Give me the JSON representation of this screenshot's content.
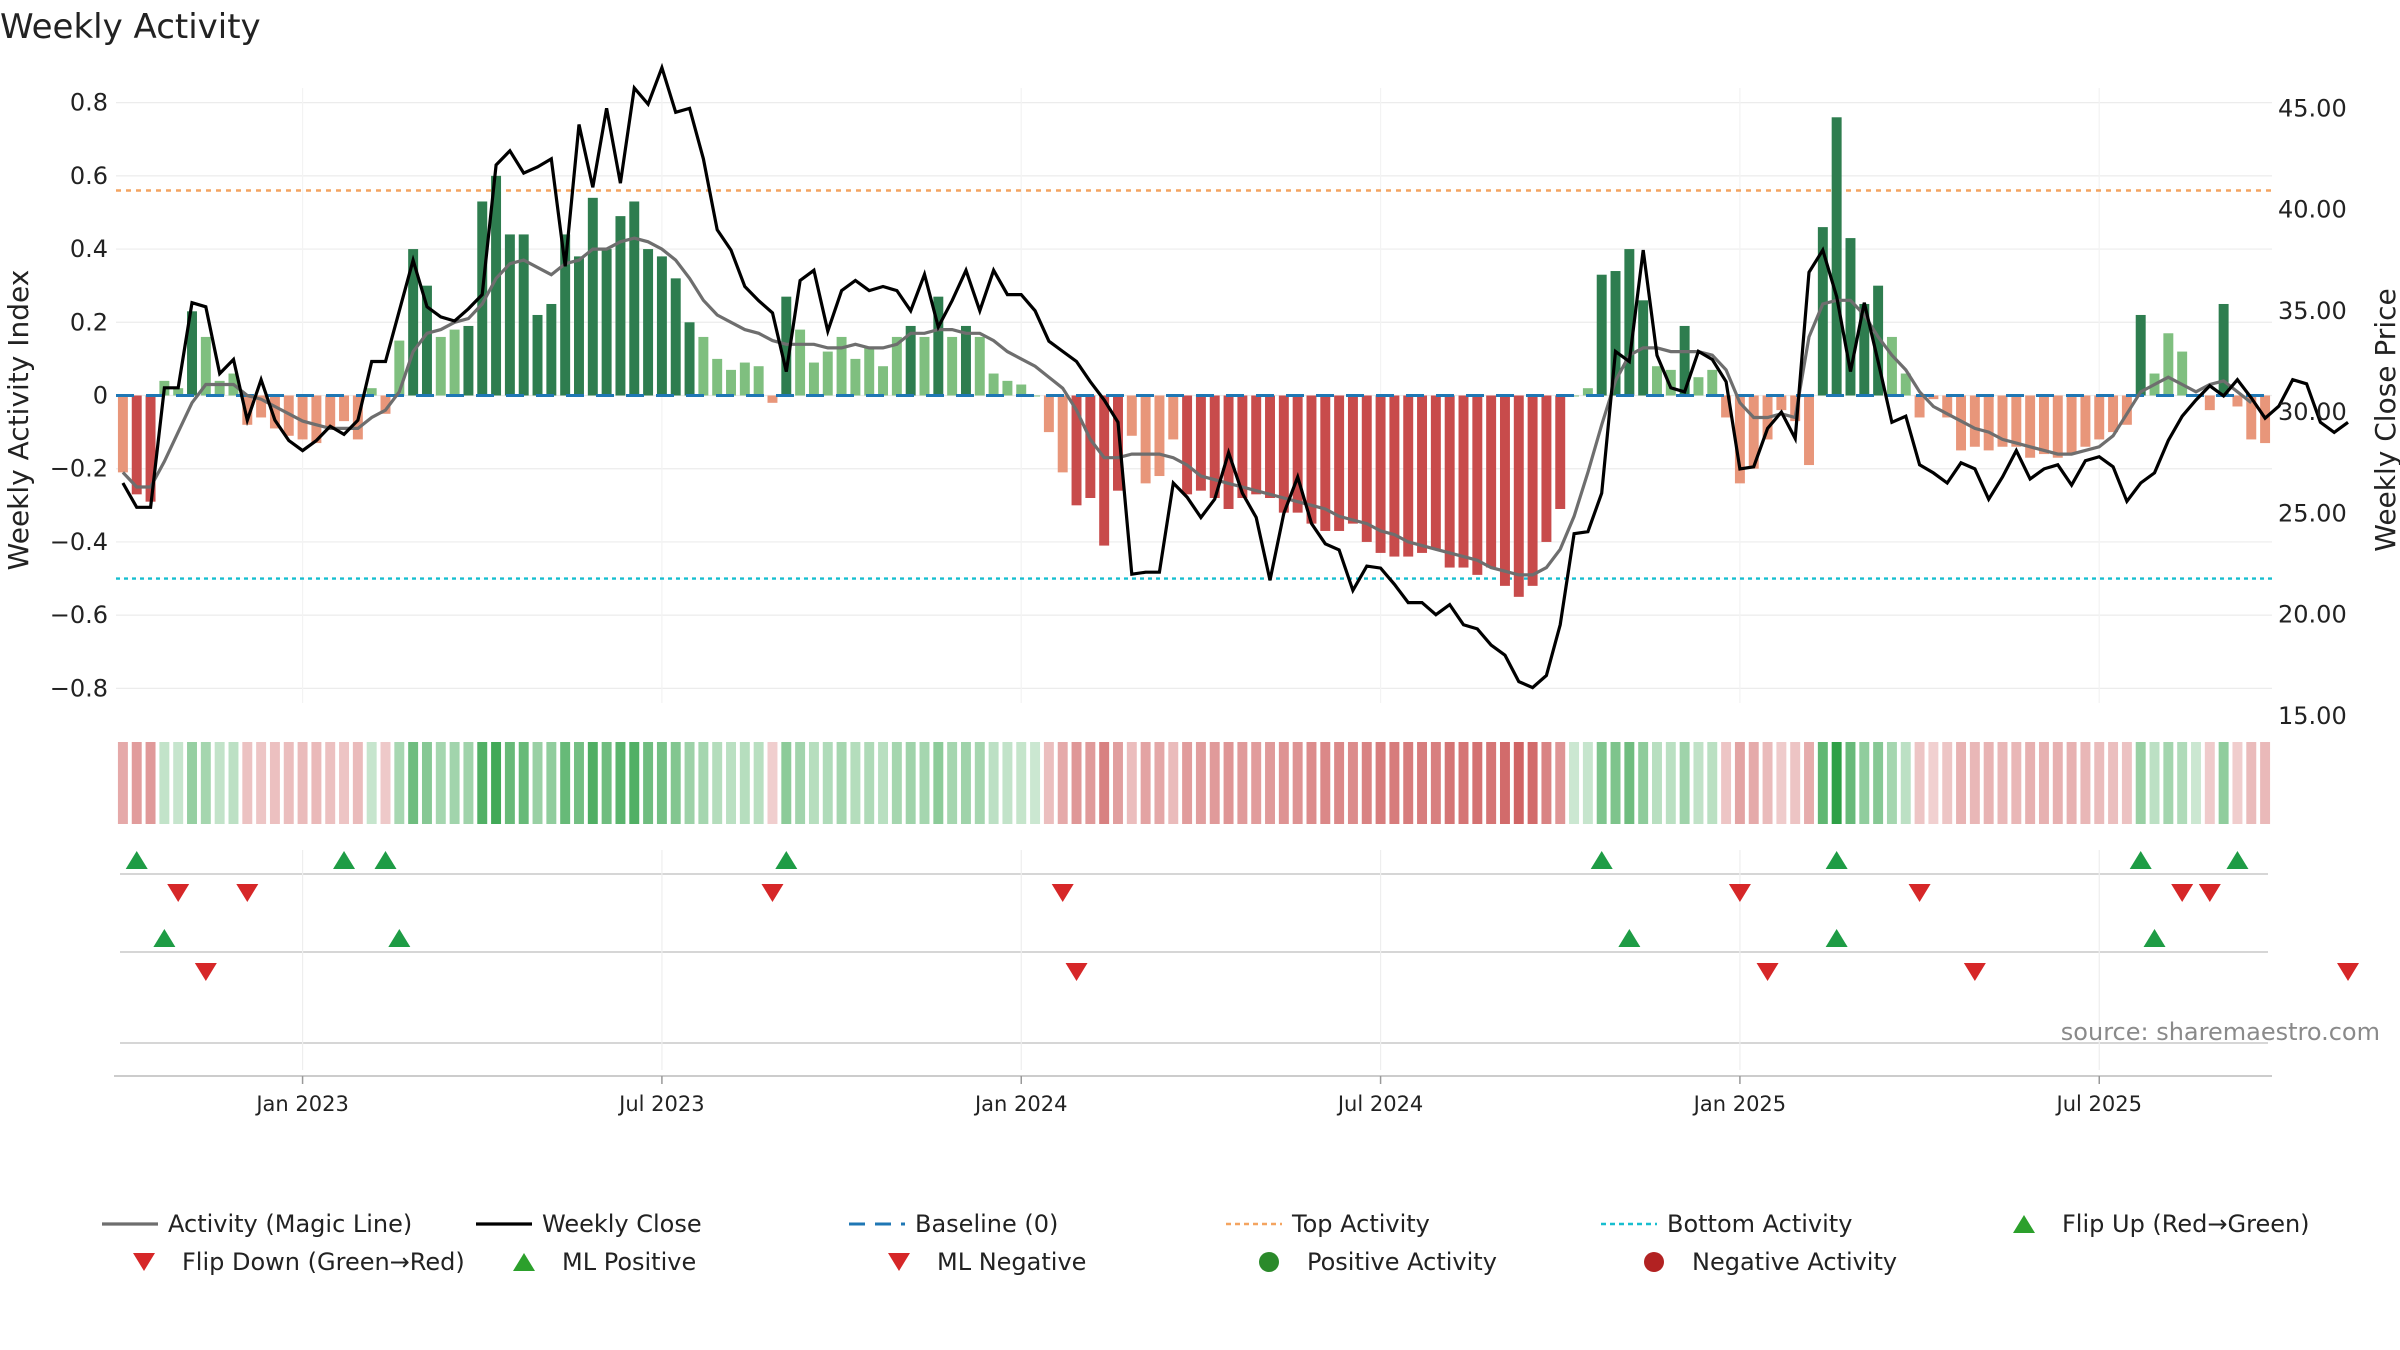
{
  "chart_data": {
    "type": "bar+line",
    "title": "Weekly Activity",
    "ylabel_left": "Weekly Activity Index",
    "ylabel_right": "Weekly Close Price",
    "left_ticks": [
      "0.8",
      "0.6",
      "0.4",
      "0.2",
      "0",
      "−0.2",
      "−0.4",
      "−0.6",
      "−0.8"
    ],
    "left_tick_values": [
      0.8,
      0.6,
      0.4,
      0.2,
      0,
      -0.2,
      -0.4,
      -0.6,
      -0.8
    ],
    "ylim_left": [
      -0.84,
      0.84
    ],
    "right_ticks": [
      "45.00",
      "40.00",
      "35.00",
      "30.00",
      "25.00",
      "20.00",
      "15.00"
    ],
    "right_tick_values": [
      45,
      40,
      35,
      30,
      25,
      20,
      15
    ],
    "ylim_right": [
      15,
      46
    ],
    "x_ticks": [
      "Jan 2023",
      "Jul 2023",
      "Jan 2024",
      "Jul 2024",
      "Jan 2025",
      "Jul 2025"
    ],
    "x_tick_weeks": [
      13,
      39,
      65,
      91,
      117,
      143
    ],
    "top_activity": 0.56,
    "bottom_activity": -0.5,
    "baseline": 0,
    "activity": [
      -0.21,
      -0.27,
      -0.29,
      0.04,
      0.02,
      0.23,
      0.16,
      0.04,
      0.06,
      -0.08,
      -0.06,
      -0.09,
      -0.11,
      -0.12,
      -0.13,
      -0.09,
      -0.07,
      -0.12,
      0.02,
      -0.05,
      0.15,
      0.4,
      0.3,
      0.16,
      0.18,
      0.19,
      0.53,
      0.6,
      0.44,
      0.44,
      0.22,
      0.25,
      0.44,
      0.38,
      0.54,
      0.4,
      0.49,
      0.53,
      0.4,
      0.38,
      0.32,
      0.2,
      0.16,
      0.1,
      0.07,
      0.09,
      0.08,
      -0.02,
      0.27,
      0.18,
      0.09,
      0.12,
      0.16,
      0.1,
      0.13,
      0.08,
      0.16,
      0.19,
      0.16,
      0.27,
      0.16,
      0.19,
      0.16,
      0.06,
      0.04,
      0.03,
      0.0,
      -0.1,
      -0.21,
      -0.3,
      -0.28,
      -0.41,
      -0.26,
      -0.11,
      -0.24,
      -0.22,
      -0.12,
      -0.27,
      -0.26,
      -0.28,
      -0.31,
      -0.28,
      -0.27,
      -0.28,
      -0.32,
      -0.32,
      -0.35,
      -0.37,
      -0.37,
      -0.35,
      -0.4,
      -0.43,
      -0.44,
      -0.44,
      -0.43,
      -0.42,
      -0.47,
      -0.47,
      -0.49,
      -0.47,
      -0.52,
      -0.55,
      -0.52,
      -0.4,
      -0.31,
      0.0,
      0.02,
      0.33,
      0.34,
      0.4,
      0.26,
      0.08,
      0.07,
      0.19,
      0.05,
      0.07,
      -0.06,
      -0.24,
      -0.2,
      -0.12,
      -0.04,
      -0.07,
      -0.19,
      0.46,
      0.76,
      0.43,
      0.25,
      0.3,
      0.16,
      0.06,
      -0.06,
      -0.01,
      -0.06,
      -0.15,
      -0.14,
      -0.15,
      -0.14,
      -0.14,
      -0.17,
      -0.16,
      -0.17,
      -0.16,
      -0.14,
      -0.12,
      -0.1,
      -0.08,
      0.22,
      0.06,
      0.17,
      0.12,
      0.0,
      -0.04,
      0.25,
      -0.03,
      -0.12,
      -0.13
    ],
    "magic_line": [
      -0.21,
      -0.25,
      -0.25,
      -0.18,
      -0.1,
      -0.02,
      0.03,
      0.03,
      0.03,
      0.0,
      -0.01,
      -0.03,
      -0.05,
      -0.07,
      -0.08,
      -0.09,
      -0.09,
      -0.09,
      -0.06,
      -0.04,
      0.01,
      0.12,
      0.17,
      0.18,
      0.2,
      0.21,
      0.25,
      0.32,
      0.36,
      0.37,
      0.35,
      0.33,
      0.36,
      0.37,
      0.4,
      0.4,
      0.42,
      0.43,
      0.42,
      0.4,
      0.37,
      0.32,
      0.26,
      0.22,
      0.2,
      0.18,
      0.17,
      0.15,
      0.14,
      0.14,
      0.14,
      0.13,
      0.13,
      0.14,
      0.13,
      0.13,
      0.14,
      0.17,
      0.17,
      0.18,
      0.18,
      0.17,
      0.17,
      0.15,
      0.12,
      0.1,
      0.08,
      0.05,
      0.02,
      -0.04,
      -0.12,
      -0.17,
      -0.17,
      -0.16,
      -0.16,
      -0.16,
      -0.17,
      -0.19,
      -0.22,
      -0.23,
      -0.24,
      -0.25,
      -0.26,
      -0.27,
      -0.28,
      -0.29,
      -0.3,
      -0.31,
      -0.33,
      -0.34,
      -0.35,
      -0.37,
      -0.38,
      -0.4,
      -0.41,
      -0.42,
      -0.43,
      -0.44,
      -0.45,
      -0.47,
      -0.48,
      -0.49,
      -0.49,
      -0.47,
      -0.42,
      -0.33,
      -0.21,
      -0.08,
      0.04,
      0.11,
      0.13,
      0.13,
      0.12,
      0.12,
      0.12,
      0.11,
      0.07,
      -0.02,
      -0.06,
      -0.06,
      -0.05,
      -0.06,
      0.16,
      0.25,
      0.26,
      0.26,
      0.22,
      0.16,
      0.11,
      0.07,
      0.01,
      -0.03,
      -0.05,
      -0.07,
      -0.09,
      -0.1,
      -0.12,
      -0.13,
      -0.14,
      -0.15,
      -0.16,
      -0.16,
      -0.15,
      -0.14,
      -0.11,
      -0.05,
      0.01,
      0.03,
      0.05,
      0.03,
      0.01,
      0.03,
      0.04,
      0.01,
      -0.02
    ],
    "weekly_close": [
      26.5,
      25.3,
      25.3,
      31.2,
      31.2,
      35.4,
      35.2,
      31.9,
      32.6,
      29.6,
      31.6,
      29.6,
      28.6,
      28.1,
      28.6,
      29.3,
      28.9,
      29.6,
      32.5,
      32.5,
      35.0,
      37.5,
      35.2,
      34.7,
      34.5,
      35.1,
      35.8,
      42.2,
      42.9,
      41.8,
      42.1,
      42.5,
      37.2,
      44.2,
      41.1,
      45.0,
      41.3,
      46.0,
      45.2,
      47.0,
      44.8,
      45.0,
      42.5,
      39.0,
      38.0,
      36.2,
      35.5,
      34.9,
      32.0,
      36.5,
      37.0,
      34.0,
      36.0,
      36.5,
      36.0,
      36.2,
      36.0,
      35.0,
      36.8,
      34.2,
      35.5,
      37.0,
      35.0,
      37.0,
      35.8,
      35.8,
      35.0,
      33.5,
      33.0,
      32.5,
      31.5,
      30.6,
      29.5,
      22.0,
      22.1,
      22.1,
      26.5,
      25.8,
      24.8,
      25.7,
      28.0,
      26.0,
      24.8,
      21.7,
      25.0,
      26.8,
      24.5,
      23.5,
      23.2,
      21.2,
      22.4,
      22.3,
      21.5,
      20.6,
      20.6,
      20.0,
      20.5,
      19.5,
      19.3,
      18.5,
      18.0,
      16.7,
      16.4,
      17.0,
      19.5,
      24.0,
      24.1,
      26.0,
      33.0,
      32.5,
      38.0,
      32.8,
      31.2,
      31.0,
      33.0,
      32.6,
      31.5,
      27.2,
      27.3,
      29.2,
      30.0,
      28.7,
      36.9,
      38.0,
      35.7,
      32.0,
      35.4,
      32.5,
      29.5,
      29.8,
      27.4,
      27.0,
      26.5,
      27.5,
      27.2,
      25.7,
      26.8,
      28.1,
      26.7,
      27.2,
      27.4,
      26.4,
      27.6,
      27.8,
      27.3,
      25.6,
      26.5,
      27.0,
      28.6,
      29.8,
      30.6,
      31.3,
      30.8,
      31.6,
      30.7,
      29.7,
      30.3,
      31.6,
      31.4,
      29.5,
      29.0,
      29.5
    ],
    "flip_up_weeks": [
      1,
      16,
      19,
      48,
      107,
      124,
      146,
      153
    ],
    "flip_down_weeks": [
      4,
      9,
      47,
      68,
      117,
      130,
      149,
      151
    ],
    "ml_positive_weeks": [
      3,
      20,
      109,
      124,
      147
    ],
    "ml_negative_weeks": [
      6,
      69,
      119,
      134,
      161
    ],
    "source": "source: sharemaestro.com",
    "legend": [
      {
        "label": "Activity (Magic Line)",
        "kind": "line",
        "color": "#6e6e6e"
      },
      {
        "label": "Weekly Close",
        "kind": "line",
        "color": "#000000"
      },
      {
        "label": "Baseline (0)",
        "kind": "dash",
        "color": "#1f77b4"
      },
      {
        "label": "Top Activity",
        "kind": "dot-orange",
        "color": "#f4a460"
      },
      {
        "label": "Bottom Activity",
        "kind": "dot-cyan",
        "color": "#17becf"
      },
      {
        "label": "Flip Up (Red→Green)",
        "kind": "tri-up",
        "color": "#2ca02c"
      },
      {
        "label": "Flip Down (Green→Red)",
        "kind": "tri-down",
        "color": "#d62728"
      },
      {
        "label": "ML Positive",
        "kind": "tri-up",
        "color": "#2ca02c"
      },
      {
        "label": "ML Negative",
        "kind": "tri-down",
        "color": "#d62728"
      },
      {
        "label": "Positive Activity",
        "kind": "circle",
        "color": "#2b8a2b"
      },
      {
        "label": "Negative Activity",
        "kind": "circle",
        "color": "#b22222"
      }
    ],
    "colors": {
      "pos_strong": "#2e7d4f",
      "pos_weak": "#7fbf7f",
      "neg_strong": "#c84b4b",
      "neg_weak": "#e8967a",
      "close": "#000000",
      "magic": "#6e6e6e",
      "top": "#f4a460",
      "bottom": "#17becf",
      "baseline": "#1f77b4",
      "up": "#1e9c45",
      "down": "#d62728",
      "grid": "#ececec"
    }
  }
}
